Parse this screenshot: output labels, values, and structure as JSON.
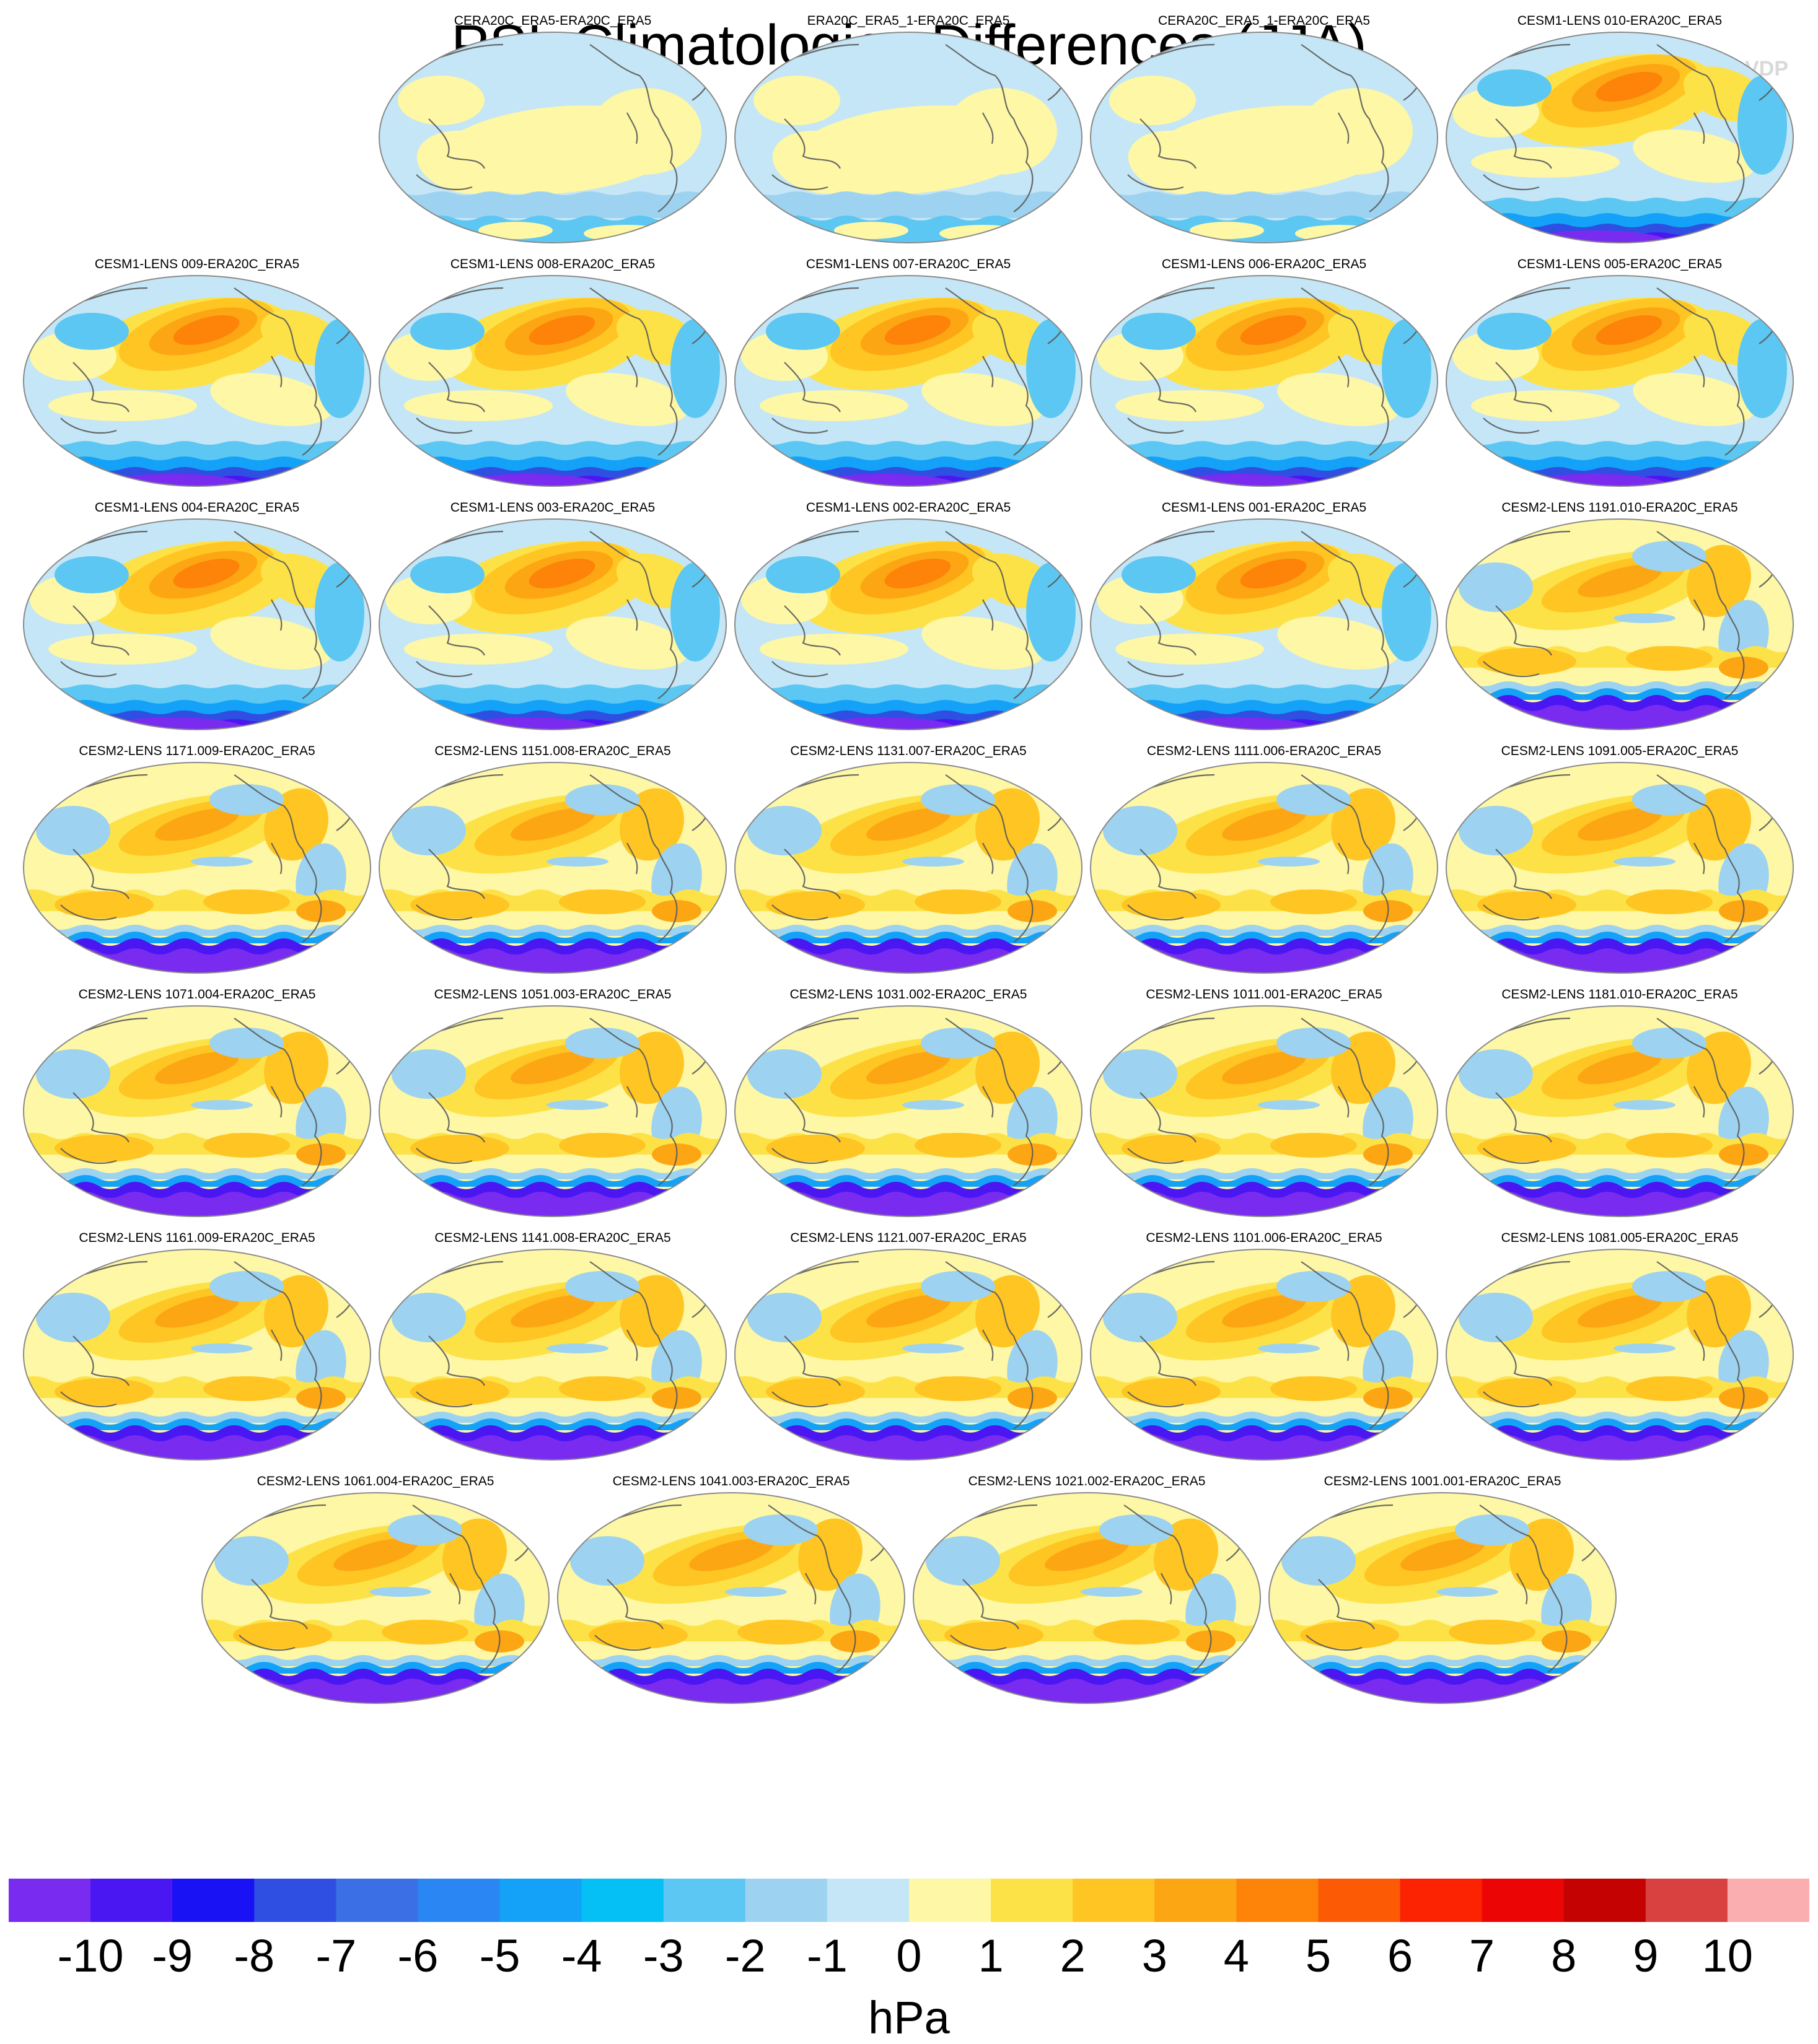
{
  "title": "PSL Climatologies Differences (JJA)",
  "watermark": "© CVDP",
  "units": "hPa",
  "panels": [
    {
      "label": "CERA20C_ERA5-ERA20C_ERA5",
      "pattern": "reanalysis"
    },
    {
      "label": "ERA20C_ERA5_1-ERA20C_ERA5",
      "pattern": "reanalysis"
    },
    {
      "label": "CERA20C_ERA5_1-ERA20C_ERA5",
      "pattern": "reanalysis"
    },
    {
      "label": "CESM1-LENS 010-ERA20C_ERA5",
      "pattern": "cesm1"
    },
    {
      "label": "CESM1-LENS 009-ERA20C_ERA5",
      "pattern": "cesm1"
    },
    {
      "label": "CESM1-LENS 008-ERA20C_ERA5",
      "pattern": "cesm1"
    },
    {
      "label": "CESM1-LENS 007-ERA20C_ERA5",
      "pattern": "cesm1"
    },
    {
      "label": "CESM1-LENS 006-ERA20C_ERA5",
      "pattern": "cesm1"
    },
    {
      "label": "CESM1-LENS 005-ERA20C_ERA5",
      "pattern": "cesm1"
    },
    {
      "label": "CESM1-LENS 004-ERA20C_ERA5",
      "pattern": "cesm1"
    },
    {
      "label": "CESM1-LENS 003-ERA20C_ERA5",
      "pattern": "cesm1"
    },
    {
      "label": "CESM1-LENS 002-ERA20C_ERA5",
      "pattern": "cesm1"
    },
    {
      "label": "CESM1-LENS 001-ERA20C_ERA5",
      "pattern": "cesm1"
    },
    {
      "label": "CESM2-LENS 1191.010-ERA20C_ERA5",
      "pattern": "cesm2"
    },
    {
      "label": "CESM2-LENS 1171.009-ERA20C_ERA5",
      "pattern": "cesm2"
    },
    {
      "label": "CESM2-LENS 1151.008-ERA20C_ERA5",
      "pattern": "cesm2"
    },
    {
      "label": "CESM2-LENS 1131.007-ERA20C_ERA5",
      "pattern": "cesm2"
    },
    {
      "label": "CESM2-LENS 1111.006-ERA20C_ERA5",
      "pattern": "cesm2"
    },
    {
      "label": "CESM2-LENS 1091.005-ERA20C_ERA5",
      "pattern": "cesm2"
    },
    {
      "label": "CESM2-LENS 1071.004-ERA20C_ERA5",
      "pattern": "cesm2"
    },
    {
      "label": "CESM2-LENS 1051.003-ERA20C_ERA5",
      "pattern": "cesm2"
    },
    {
      "label": "CESM2-LENS 1031.002-ERA20C_ERA5",
      "pattern": "cesm2"
    },
    {
      "label": "CESM2-LENS 1011.001-ERA20C_ERA5",
      "pattern": "cesm2"
    },
    {
      "label": "CESM2-LENS 1181.010-ERA20C_ERA5",
      "pattern": "cesm2"
    },
    {
      "label": "CESM2-LENS 1161.009-ERA20C_ERA5",
      "pattern": "cesm2"
    },
    {
      "label": "CESM2-LENS 1141.008-ERA20C_ERA5",
      "pattern": "cesm2"
    },
    {
      "label": "CESM2-LENS 1121.007-ERA20C_ERA5",
      "pattern": "cesm2"
    },
    {
      "label": "CESM2-LENS 1101.006-ERA20C_ERA5",
      "pattern": "cesm2"
    },
    {
      "label": "CESM2-LENS 1081.005-ERA20C_ERA5",
      "pattern": "cesm2"
    },
    {
      "label": "CESM2-LENS 1061.004-ERA20C_ERA5",
      "pattern": "cesm2"
    },
    {
      "label": "CESM2-LENS 1041.003-ERA20C_ERA5",
      "pattern": "cesm2"
    },
    {
      "label": "CESM2-LENS 1021.002-ERA20C_ERA5",
      "pattern": "cesm2"
    },
    {
      "label": "CESM2-LENS 1001.001-ERA20C_ERA5",
      "pattern": "cesm2"
    }
  ],
  "colorbar": {
    "ticks": [
      "-10",
      "-9",
      "-8",
      "-7",
      "-6",
      "-5",
      "-4",
      "-3",
      "-2",
      "-1",
      "0",
      "1",
      "2",
      "3",
      "4",
      "5",
      "6",
      "7",
      "8",
      "9",
      "10"
    ],
    "colors": [
      "#7a2bf0",
      "#4a16f2",
      "#1812f4",
      "#2e4fe2",
      "#3a6fe6",
      "#2a86f2",
      "#13a2f7",
      "#05c0f5",
      "#5cc7f2",
      "#9dd3f0",
      "#c5e6f6",
      "#fdf7a6",
      "#fde247",
      "#fec523",
      "#fda614",
      "#fd8408",
      "#fc5a05",
      "#fc2302",
      "#ec0505",
      "#c40202",
      "#d94040",
      "#fbaeb0"
    ]
  },
  "pattern_colors": {
    "ocean_base": "#c5e6f6",
    "land_base": "#dcecf5"
  }
}
